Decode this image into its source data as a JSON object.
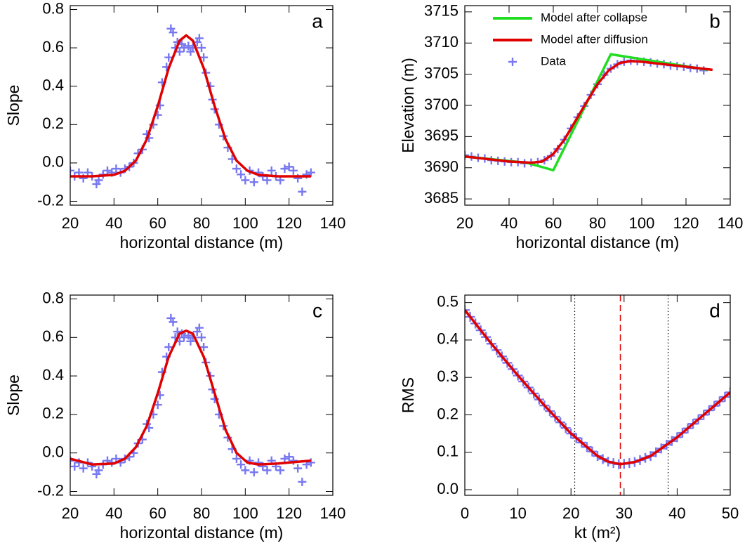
{
  "chart_data": [
    {
      "type": "line",
      "label": "a",
      "xlabel": "horizontal distance (m)",
      "ylabel": "Slope",
      "xlim": [
        20,
        140
      ],
      "ylim": [
        -0.22,
        0.82
      ],
      "xticks": [
        20,
        40,
        60,
        80,
        100,
        120,
        140
      ],
      "yticks": [
        -0.2,
        {
          "value": 0,
          "label": "0.0"
        },
        0.2,
        0.4,
        0.6,
        0.8
      ],
      "series": [
        {
          "style": "scatter",
          "color": "#7878f0",
          "x": [
            20,
            22,
            24,
            26,
            28,
            30,
            32,
            33,
            35,
            37,
            39,
            41,
            43,
            45,
            47,
            49,
            51,
            53,
            55,
            56,
            58,
            60,
            61,
            62,
            64,
            65,
            66,
            67,
            68,
            69,
            70,
            71,
            72,
            74,
            75,
            76,
            78,
            79,
            80,
            81,
            82,
            84,
            85,
            86,
            88,
            90,
            92,
            94,
            96,
            98,
            100,
            102,
            104,
            106,
            108,
            110,
            112,
            114,
            116,
            118,
            120,
            122,
            124,
            126,
            128,
            130
          ],
          "values": [
            -0.04,
            -0.07,
            -0.05,
            -0.08,
            -0.05,
            -0.07,
            -0.11,
            -0.09,
            -0.06,
            -0.04,
            -0.05,
            -0.03,
            -0.05,
            -0.03,
            -0.02,
            0.0,
            0.05,
            0.07,
            0.15,
            0.13,
            0.2,
            0.25,
            0.3,
            0.42,
            0.5,
            0.55,
            0.7,
            0.68,
            0.6,
            0.63,
            0.58,
            0.62,
            0.6,
            0.61,
            0.58,
            0.6,
            0.63,
            0.65,
            0.6,
            0.55,
            0.47,
            0.4,
            0.33,
            0.28,
            0.2,
            0.14,
            0.08,
            0.02,
            -0.03,
            -0.06,
            -0.09,
            -0.04,
            -0.1,
            -0.05,
            -0.07,
            -0.09,
            -0.04,
            -0.07,
            -0.09,
            -0.03,
            -0.02,
            -0.04,
            -0.08,
            -0.15,
            -0.06,
            -0.05
          ]
        },
        {
          "style": "line",
          "color": "#e00000",
          "x": [
            20,
            30,
            40,
            45,
            50,
            55,
            60,
            65,
            70,
            73,
            76,
            81,
            86,
            91,
            96,
            101,
            106,
            115,
            130
          ],
          "values": [
            -0.07,
            -0.07,
            -0.062,
            -0.041,
            0.012,
            0.123,
            0.296,
            0.494,
            0.638,
            0.665,
            0.638,
            0.494,
            0.296,
            0.123,
            0.012,
            -0.041,
            -0.062,
            -0.07,
            -0.07
          ]
        }
      ]
    },
    {
      "type": "line",
      "label": "b",
      "xlabel": "horizontal distance (m)",
      "ylabel": "Elevation (m)",
      "xlim": [
        20,
        140
      ],
      "ylim": [
        3684,
        3716
      ],
      "xticks": [
        20,
        40,
        60,
        80,
        100,
        120,
        140
      ],
      "yticks": [
        3685,
        3690,
        3695,
        3700,
        3705,
        3710,
        3715
      ],
      "series": [
        {
          "name": "Model after collapse",
          "style": "line",
          "color": "#22dd22",
          "x": [
            20,
            48,
            60,
            86,
            130
          ],
          "values": [
            3691.8,
            3690.8,
            3689.6,
            3708.2,
            3705.7
          ]
        },
        {
          "name": "Model after diffusion",
          "style": "line",
          "color": "#e00000",
          "x": [
            20,
            30,
            40,
            50,
            55,
            60,
            65,
            70,
            75,
            80,
            85,
            90,
            95,
            100,
            110,
            120,
            132
          ],
          "values": [
            3691.8,
            3691.4,
            3691.0,
            3690.8,
            3691.0,
            3692.2,
            3694.5,
            3697.5,
            3700.5,
            3703.4,
            3705.6,
            3706.8,
            3707.1,
            3707.0,
            3706.6,
            3706.2,
            3705.7
          ]
        },
        {
          "name": "Data",
          "style": "scatter",
          "color": "#7878f0",
          "x": [
            20,
            23,
            26,
            29,
            32,
            35,
            38,
            41,
            44,
            47,
            50,
            53,
            56,
            59,
            62,
            65,
            68,
            71,
            74,
            77,
            80,
            83,
            86,
            89,
            92,
            95,
            98,
            101,
            104,
            107,
            110,
            113,
            116,
            119,
            122,
            125,
            128
          ],
          "values": [
            3692.0,
            3691.8,
            3691.6,
            3691.5,
            3691.2,
            3691.1,
            3691.0,
            3690.9,
            3690.9,
            3690.7,
            3690.8,
            3690.9,
            3691.2,
            3691.9,
            3693.0,
            3694.5,
            3696.3,
            3698.1,
            3699.9,
            3701.7,
            3703.4,
            3704.9,
            3705.9,
            3706.6,
            3707.0,
            3707.2,
            3707.1,
            3707.0,
            3706.9,
            3706.7,
            3706.6,
            3706.4,
            3706.3,
            3706.2,
            3706.0,
            3705.9,
            3705.6
          ]
        }
      ]
    },
    {
      "type": "line",
      "label": "c",
      "xlabel": "horizontal distance (m)",
      "ylabel": "Slope",
      "xlim": [
        20,
        140
      ],
      "ylim": [
        -0.22,
        0.82
      ],
      "xticks": [
        20,
        40,
        60,
        80,
        100,
        120,
        140
      ],
      "yticks": [
        -0.2,
        {
          "value": 0,
          "label": "0.0"
        },
        0.2,
        0.4,
        0.6,
        0.8
      ],
      "series": [
        {
          "style": "scatter",
          "color": "#7878f0",
          "x": [
            20,
            22,
            24,
            26,
            28,
            30,
            32,
            33,
            35,
            37,
            39,
            41,
            43,
            45,
            47,
            49,
            51,
            53,
            55,
            56,
            58,
            60,
            61,
            62,
            64,
            65,
            66,
            67,
            68,
            69,
            70,
            71,
            72,
            74,
            75,
            76,
            78,
            79,
            80,
            81,
            82,
            84,
            85,
            86,
            88,
            90,
            92,
            94,
            96,
            98,
            100,
            102,
            104,
            106,
            108,
            110,
            112,
            114,
            116,
            118,
            120,
            122,
            124,
            126,
            128,
            130
          ],
          "values": [
            -0.04,
            -0.07,
            -0.05,
            -0.08,
            -0.05,
            -0.07,
            -0.11,
            -0.09,
            -0.06,
            -0.04,
            -0.05,
            -0.03,
            -0.05,
            -0.03,
            -0.02,
            0.0,
            0.05,
            0.07,
            0.15,
            0.13,
            0.2,
            0.25,
            0.3,
            0.42,
            0.5,
            0.55,
            0.7,
            0.68,
            0.6,
            0.63,
            0.58,
            0.62,
            0.6,
            0.61,
            0.58,
            0.6,
            0.63,
            0.65,
            0.6,
            0.55,
            0.47,
            0.4,
            0.33,
            0.28,
            0.2,
            0.14,
            0.08,
            0.02,
            -0.03,
            -0.06,
            -0.09,
            -0.04,
            -0.1,
            -0.05,
            -0.07,
            -0.09,
            -0.04,
            -0.07,
            -0.09,
            -0.03,
            -0.02,
            -0.04,
            -0.08,
            -0.15,
            -0.06,
            -0.05
          ]
        },
        {
          "style": "line",
          "color": "#e00000",
          "x": [
            20,
            30,
            40,
            45,
            50,
            55,
            60,
            65,
            70,
            73,
            76,
            81,
            86,
            91,
            96,
            101,
            106,
            115,
            130
          ],
          "values": [
            -0.03,
            -0.06,
            -0.055,
            -0.03,
            0.03,
            0.14,
            0.31,
            0.5,
            0.62,
            0.635,
            0.62,
            0.5,
            0.31,
            0.12,
            0.0,
            -0.05,
            -0.06,
            -0.055,
            -0.04
          ]
        }
      ]
    },
    {
      "type": "line",
      "label": "d",
      "xlabel": "kt (m²)",
      "ylabel": "RMS",
      "xlim": [
        0,
        50
      ],
      "ylim": [
        -0.015,
        0.52
      ],
      "xticks": [
        0,
        10,
        20,
        30,
        40,
        50
      ],
      "yticks": [
        {
          "value": 0,
          "label": "0.0"
        },
        0.1,
        0.2,
        0.3,
        0.4,
        0.5
      ],
      "best_fit": 29.3,
      "bounds": [
        20.7,
        38.3
      ],
      "series": [
        {
          "style": "scatter",
          "color": "#7878f0",
          "x": [
            0,
            1,
            2,
            3,
            4,
            5,
            6,
            7,
            8,
            9,
            10,
            11,
            12,
            13,
            14,
            15,
            16,
            17,
            18,
            19,
            20,
            21,
            22,
            23,
            24,
            25,
            26,
            27,
            28,
            29,
            30,
            31,
            32,
            33,
            34,
            35,
            36,
            37,
            38,
            39,
            40,
            41,
            42,
            43,
            44,
            45,
            46,
            47,
            48,
            49,
            50
          ],
          "values": [
            0.48,
            0.462,
            0.444,
            0.426,
            0.408,
            0.39,
            0.373,
            0.356,
            0.339,
            0.322,
            0.305,
            0.289,
            0.273,
            0.257,
            0.241,
            0.225,
            0.21,
            0.195,
            0.18,
            0.165,
            0.15,
            0.138,
            0.126,
            0.114,
            0.102,
            0.09,
            0.082,
            0.075,
            0.071,
            0.068,
            0.069,
            0.071,
            0.074,
            0.079,
            0.085,
            0.09,
            0.1,
            0.11,
            0.12,
            0.13,
            0.14,
            0.152,
            0.164,
            0.176,
            0.188,
            0.2,
            0.212,
            0.224,
            0.236,
            0.248,
            0.26
          ]
        },
        {
          "style": "line",
          "color": "#e00000",
          "x": [
            0,
            5,
            10,
            15,
            20,
            25,
            27,
            29.3,
            32,
            35,
            40,
            45,
            50
          ],
          "values": [
            0.48,
            0.39,
            0.305,
            0.225,
            0.15,
            0.09,
            0.075,
            0.068,
            0.074,
            0.09,
            0.14,
            0.2,
            0.26
          ]
        }
      ]
    }
  ]
}
